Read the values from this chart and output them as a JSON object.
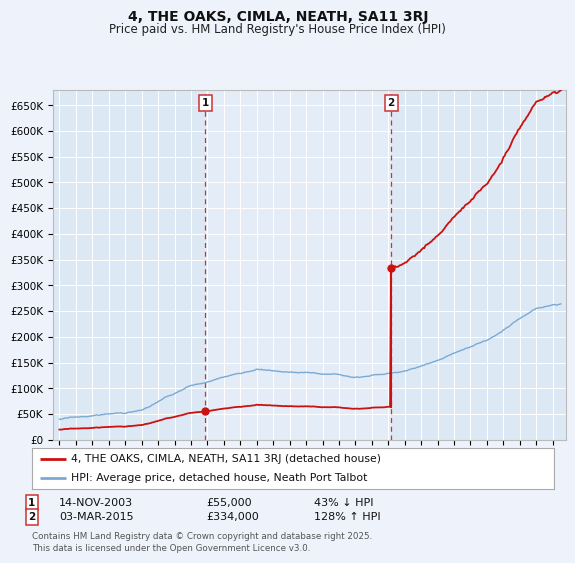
{
  "title": "4, THE OAKS, CIMLA, NEATH, SA11 3RJ",
  "subtitle": "Price paid vs. HM Land Registry's House Price Index (HPI)",
  "ylim": [
    0,
    680000
  ],
  "yticks": [
    0,
    50000,
    100000,
    150000,
    200000,
    250000,
    300000,
    350000,
    400000,
    450000,
    500000,
    550000,
    600000,
    650000
  ],
  "ytick_labels": [
    "£0",
    "£50K",
    "£100K",
    "£150K",
    "£200K",
    "£250K",
    "£300K",
    "£350K",
    "£400K",
    "£450K",
    "£500K",
    "£550K",
    "£600K",
    "£650K"
  ],
  "background_color": "#eef2fa",
  "plot_background": "#dde8f5",
  "hpi_color": "#7aaad4",
  "price_color": "#cc1111",
  "vline_color": "#cc3333",
  "transaction1_year": 2003.87,
  "transaction1_price": 55000,
  "transaction2_year": 2015.17,
  "transaction2_price": 334000,
  "marker1_label": "1",
  "marker2_label": "2",
  "transaction1_date": "14-NOV-2003",
  "transaction1_price_str": "£55,000",
  "transaction1_hpi": "43% ↓ HPI",
  "transaction2_date": "03-MAR-2015",
  "transaction2_price_str": "£334,000",
  "transaction2_hpi": "128% ↑ HPI",
  "legend_line1": "4, THE OAKS, CIMLA, NEATH, SA11 3RJ (detached house)",
  "legend_line2": "HPI: Average price, detached house, Neath Port Talbot",
  "footer": "Contains HM Land Registry data © Crown copyright and database right 2025.\nThis data is licensed under the Open Government Licence v3.0.",
  "title_fontsize": 10,
  "subtitle_fontsize": 8.5
}
